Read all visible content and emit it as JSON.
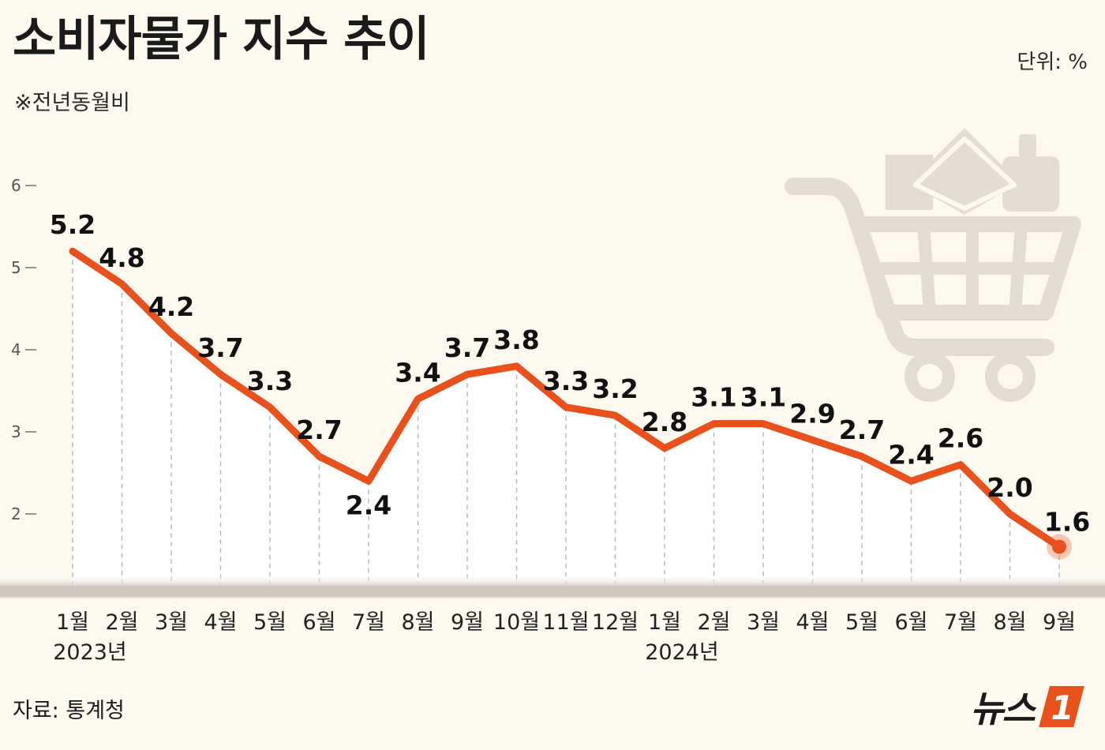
{
  "title": "소비자물가 지수 추이",
  "subtitle": "※전년동월비",
  "unit": "단위:  %",
  "source": "자료: 통계청",
  "logo": {
    "text": "뉴스",
    "mark": "1"
  },
  "colors": {
    "line": "#e8511c",
    "background": "#fdf9ef",
    "plot_fill": "#ffffff",
    "cart": "#e5ddd2",
    "grid": "#bbbbbb"
  },
  "icons": [
    "shopping-cart-icon"
  ],
  "chart_data": {
    "type": "line",
    "categories": [
      "1월",
      "2월",
      "3월",
      "4월",
      "5월",
      "6월",
      "7월",
      "8월",
      "9월",
      "10월",
      "11월",
      "12월",
      "1월",
      "2월",
      "3월",
      "4월",
      "5월",
      "6월",
      "7월",
      "8월",
      "9월"
    ],
    "year_labels": [
      {
        "text": "2023년",
        "at_index": 0
      },
      {
        "text": "2024년",
        "at_index": 12
      }
    ],
    "values": [
      5.2,
      4.8,
      4.2,
      3.7,
      3.3,
      2.7,
      2.4,
      3.4,
      3.7,
      3.8,
      3.3,
      3.2,
      2.8,
      3.1,
      3.1,
      2.9,
      2.7,
      2.4,
      2.6,
      2.0,
      1.6
    ],
    "value_labels": [
      "5.2",
      "4.8",
      "4.2",
      "3.7",
      "3.3",
      "2.7",
      "2.4",
      "3.4",
      "3.7",
      "3.8",
      "3.3",
      "3.2",
      "2.8",
      "3.1",
      "3.1",
      "2.9",
      "2.7",
      "2.4",
      "2.6",
      "2.0",
      "1.6"
    ],
    "yticks": [
      2,
      3,
      4,
      5,
      6
    ],
    "ylim": [
      1.0,
      6.0
    ],
    "grid": "vertical dashed drop lines",
    "highlight_last_point": true
  }
}
